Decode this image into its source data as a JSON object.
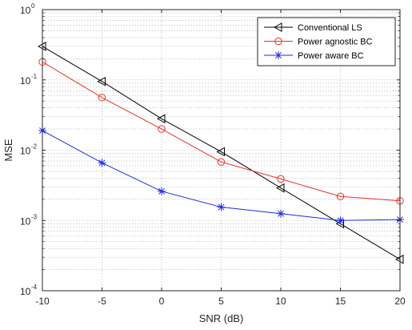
{
  "chart_data": {
    "type": "line",
    "xlabel": "SNR (dB)",
    "ylabel": "MSE",
    "xlim": [
      -10,
      20
    ],
    "ylim": [
      0.0001,
      1
    ],
    "yscale": "log",
    "grid": true,
    "minor_grid": true,
    "legend_position": "top-right",
    "x_ticks": [
      -10,
      -5,
      0,
      5,
      10,
      15,
      20
    ],
    "x_tick_labels": [
      "-10",
      "-5",
      "0",
      "5",
      "10",
      "15",
      "20"
    ],
    "y_ticks": [
      {
        "value": 1,
        "base": "10",
        "exp": "0"
      },
      {
        "value": 0.1,
        "base": "10",
        "exp": "-1"
      },
      {
        "value": 0.01,
        "base": "10",
        "exp": "-2"
      },
      {
        "value": 0.001,
        "base": "10",
        "exp": "-3"
      },
      {
        "value": 0.0001,
        "base": "10",
        "exp": "-4"
      }
    ],
    "x": [
      -10,
      -5,
      0,
      5,
      10,
      15,
      20
    ],
    "series": [
      {
        "name": "Conventional LS",
        "color": "#000000",
        "marker": "triangle-left",
        "values": [
          0.3,
          0.095,
          0.028,
          0.0095,
          0.0029,
          0.0009,
          0.00028
        ]
      },
      {
        "name": "Power agnostic BC",
        "color": "#e8322a",
        "marker": "circle",
        "values": [
          0.18,
          0.056,
          0.02,
          0.0068,
          0.0039,
          0.0022,
          0.0019
        ]
      },
      {
        "name": "Power aware BC",
        "color": "#1f2ae0",
        "marker": "asterisk",
        "values": [
          0.019,
          0.0066,
          0.0026,
          0.00155,
          0.00125,
          0.001,
          0.00103
        ]
      }
    ]
  }
}
